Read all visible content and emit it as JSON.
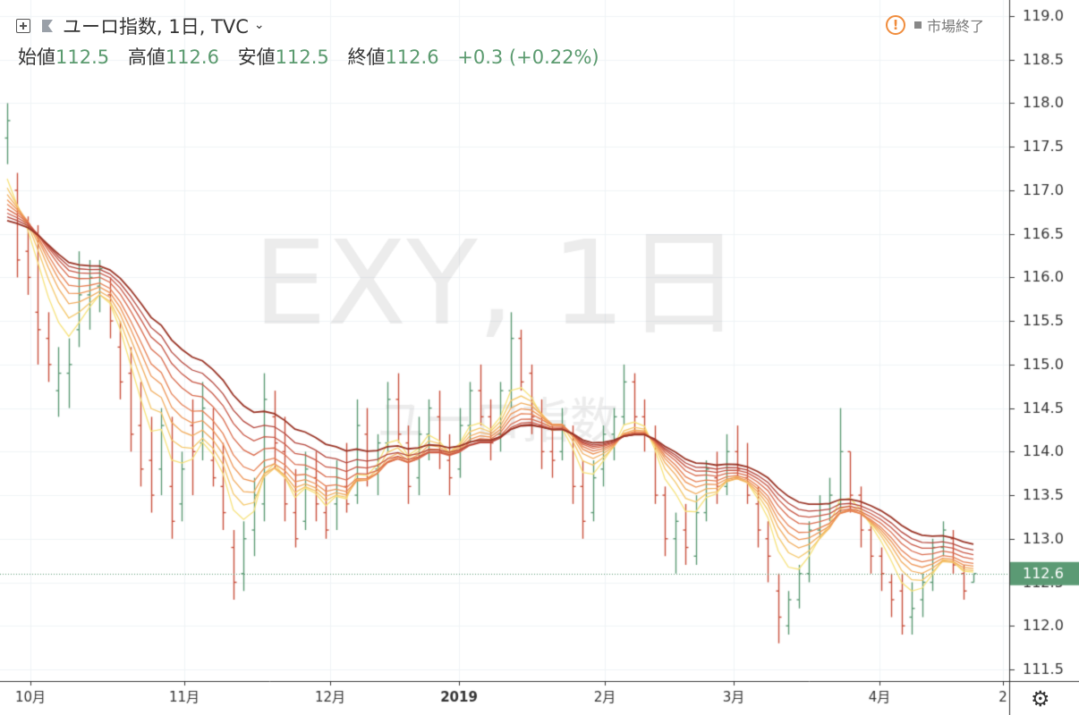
{
  "header": {
    "title": "ユーロ指数, 1日, TVC",
    "chevron": "⌄",
    "status_text": "市場終了",
    "alert_symbol": "!"
  },
  "ohlc": {
    "open_label": "始値",
    "open_value": "112.5",
    "high_label": "高値",
    "high_value": "112.6",
    "low_label": "安値",
    "low_value": "112.5",
    "close_label": "終値",
    "close_value": "112.6",
    "change": "+0.3 (+0.22%)"
  },
  "watermark": {
    "symbol": "EXY, 1日",
    "name": "ユーロ指数"
  },
  "colors": {
    "up": "#5b9a74",
    "down": "#c9503c",
    "grid": "#f0f3f6",
    "axis": "#333333",
    "price_tag": "#5b9a74"
  },
  "chart_data": {
    "type": "line",
    "description": "Daily OHLC bars with ribbon of moving averages",
    "y_axis": {
      "ticks": [
        "119.0",
        "118.5",
        "118.0",
        "117.5",
        "117.0",
        "116.5",
        "116.0",
        "115.5",
        "115.0",
        "114.5",
        "114.0",
        "113.5",
        "113.0",
        "112.5",
        "112.0",
        "111.5"
      ],
      "min": 111.5,
      "max": 119.0
    },
    "x_axis": {
      "labels": [
        "10月",
        "11月",
        "12月",
        "2019",
        "2月",
        "3月",
        "4月",
        "2"
      ]
    },
    "last_price": "112.6",
    "ohlc_bars": [
      [
        117.6,
        118.0,
        117.3,
        117.8
      ],
      [
        117.0,
        117.2,
        116.0,
        116.2
      ],
      [
        116.3,
        116.7,
        115.8,
        116.0
      ],
      [
        115.6,
        116.6,
        115.0,
        115.4
      ],
      [
        115.3,
        115.6,
        114.8,
        115.0
      ],
      [
        114.7,
        115.2,
        114.4,
        114.9
      ],
      [
        114.9,
        115.3,
        114.5,
        115.0
      ],
      [
        115.4,
        116.3,
        115.2,
        115.8
      ],
      [
        115.8,
        116.2,
        115.4,
        116.0
      ],
      [
        115.9,
        116.2,
        115.6,
        116.1
      ],
      [
        115.8,
        116.0,
        115.3,
        115.5
      ],
      [
        115.2,
        115.5,
        114.6,
        114.8
      ],
      [
        114.9,
        115.2,
        114.0,
        114.2
      ],
      [
        114.3,
        114.8,
        113.6,
        113.8
      ],
      [
        113.9,
        114.4,
        113.3,
        113.5
      ],
      [
        113.8,
        114.5,
        113.5,
        114.3
      ],
      [
        113.6,
        114.4,
        113.0,
        113.2
      ],
      [
        113.4,
        114.0,
        113.2,
        113.8
      ],
      [
        114.3,
        114.6,
        113.5,
        114.0
      ],
      [
        114.1,
        114.8,
        113.9,
        114.5
      ],
      [
        113.9,
        114.5,
        113.6,
        113.7
      ],
      [
        113.6,
        114.1,
        113.1,
        113.3
      ],
      [
        112.9,
        113.1,
        112.3,
        112.5
      ],
      [
        112.6,
        113.2,
        112.4,
        113.0
      ],
      [
        113.1,
        113.7,
        112.8,
        113.5
      ],
      [
        113.4,
        114.9,
        113.2,
        114.6
      ],
      [
        114.4,
        114.7,
        113.8,
        114.1
      ],
      [
        114.0,
        114.4,
        113.2,
        113.4
      ],
      [
        113.3,
        113.8,
        112.9,
        113.0
      ],
      [
        113.2,
        114.0,
        113.1,
        113.8
      ],
      [
        113.7,
        114.0,
        113.2,
        113.4
      ],
      [
        113.3,
        113.6,
        113.0,
        113.1
      ],
      [
        113.4,
        113.9,
        113.1,
        113.7
      ],
      [
        113.6,
        114.1,
        113.3,
        113.4
      ],
      [
        113.5,
        114.6,
        113.4,
        114.3
      ],
      [
        114.2,
        114.5,
        113.6,
        113.7
      ],
      [
        113.8,
        114.2,
        113.5,
        114.1
      ],
      [
        114.1,
        114.8,
        114.0,
        114.6
      ],
      [
        114.6,
        114.9,
        114.1,
        114.2
      ],
      [
        114.1,
        114.3,
        113.4,
        113.6
      ],
      [
        113.7,
        114.4,
        113.5,
        114.2
      ],
      [
        114.2,
        114.6,
        113.9,
        114.5
      ],
      [
        114.4,
        114.7,
        113.8,
        114.0
      ],
      [
        113.9,
        114.2,
        113.5,
        113.7
      ],
      [
        113.8,
        114.5,
        113.7,
        114.3
      ],
      [
        114.3,
        114.8,
        114.1,
        114.7
      ],
      [
        114.7,
        115.0,
        114.3,
        114.4
      ],
      [
        114.4,
        114.6,
        113.9,
        114.1
      ],
      [
        114.2,
        114.8,
        114.0,
        114.7
      ],
      [
        114.7,
        115.6,
        114.5,
        115.3
      ],
      [
        115.3,
        115.4,
        114.7,
        114.8
      ],
      [
        114.9,
        115.0,
        114.2,
        114.4
      ],
      [
        114.3,
        114.6,
        113.8,
        114.0
      ],
      [
        114.0,
        114.3,
        113.7,
        113.9
      ],
      [
        114.0,
        114.5,
        113.9,
        114.3
      ],
      [
        114.2,
        114.3,
        113.4,
        113.6
      ],
      [
        113.6,
        113.9,
        113.0,
        113.2
      ],
      [
        113.3,
        113.9,
        113.2,
        113.7
      ],
      [
        113.8,
        114.3,
        113.6,
        114.2
      ],
      [
        114.2,
        114.5,
        113.9,
        114.4
      ],
      [
        114.4,
        115.0,
        114.3,
        114.8
      ],
      [
        114.8,
        114.9,
        114.2,
        114.4
      ],
      [
        114.4,
        114.6,
        114.0,
        114.2
      ],
      [
        114.1,
        114.3,
        113.4,
        113.5
      ],
      [
        113.5,
        113.6,
        112.8,
        113.0
      ],
      [
        113.0,
        113.3,
        112.6,
        113.2
      ],
      [
        113.1,
        113.4,
        112.7,
        112.9
      ],
      [
        112.8,
        113.5,
        112.7,
        113.3
      ],
      [
        113.3,
        113.9,
        113.2,
        113.8
      ],
      [
        113.7,
        114.0,
        113.4,
        113.6
      ],
      [
        113.6,
        114.2,
        113.5,
        114.0
      ],
      [
        114.0,
        114.3,
        113.7,
        113.8
      ],
      [
        113.7,
        114.1,
        113.4,
        113.5
      ],
      [
        113.4,
        113.6,
        112.9,
        113.1
      ],
      [
        113.0,
        113.2,
        112.5,
        112.8
      ],
      [
        112.4,
        112.6,
        111.8,
        112.1
      ],
      [
        112.0,
        112.4,
        111.9,
        112.3
      ],
      [
        112.3,
        112.7,
        112.2,
        112.6
      ],
      [
        112.6,
        113.2,
        112.5,
        113.1
      ],
      [
        113.1,
        113.5,
        113.0,
        113.4
      ],
      [
        113.4,
        113.7,
        113.2,
        113.5
      ],
      [
        113.4,
        114.5,
        113.3,
        114.0
      ],
      [
        114.0,
        114.0,
        113.3,
        113.5
      ],
      [
        113.5,
        113.6,
        112.9,
        113.1
      ],
      [
        113.1,
        113.2,
        112.6,
        112.8
      ],
      [
        112.8,
        112.9,
        112.4,
        112.6
      ],
      [
        112.5,
        112.6,
        112.1,
        112.3
      ],
      [
        112.4,
        112.6,
        111.9,
        112.0
      ],
      [
        112.1,
        112.5,
        111.9,
        112.2
      ],
      [
        112.3,
        112.6,
        112.1,
        112.5
      ],
      [
        112.5,
        113.0,
        112.4,
        112.9
      ],
      [
        112.9,
        113.2,
        112.8,
        113.1
      ],
      [
        113.0,
        113.1,
        112.6,
        112.7
      ],
      [
        112.6,
        112.7,
        112.3,
        112.4
      ],
      [
        112.5,
        112.6,
        112.5,
        112.6
      ]
    ]
  }
}
